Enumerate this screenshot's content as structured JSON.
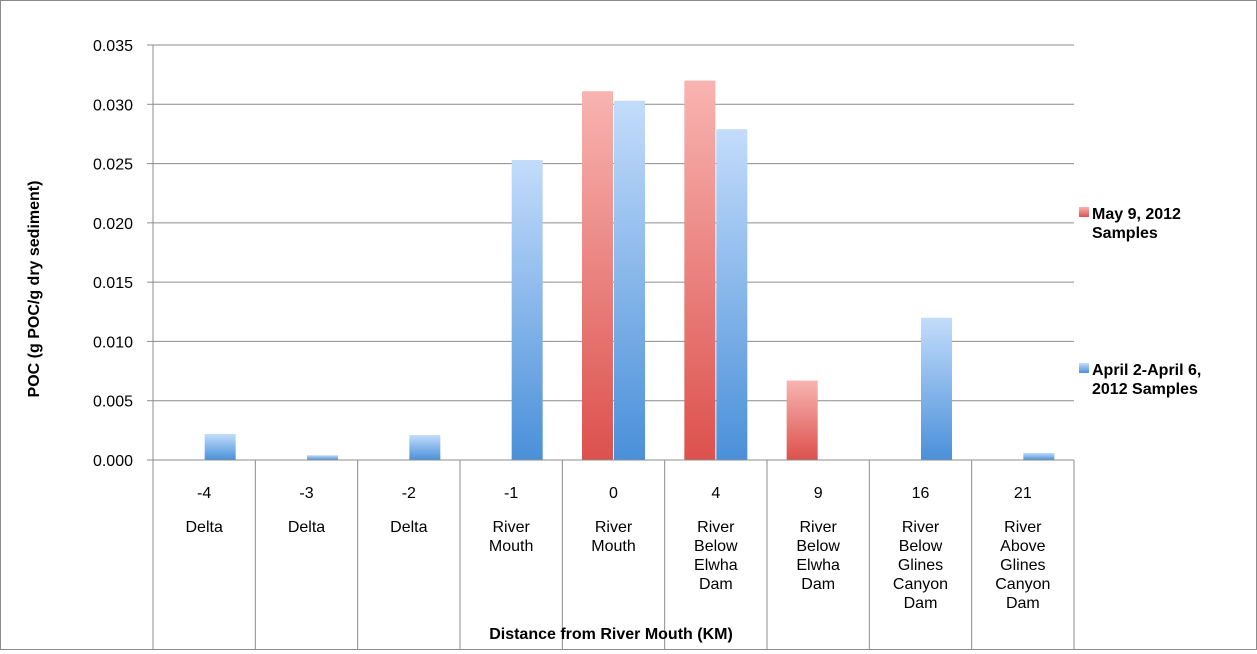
{
  "chart_data": {
    "type": "bar",
    "title": "",
    "xlabel": "Distance from River Mouth (KM)",
    "ylabel": "POC (g POC/g dry sediment)",
    "ylim": [
      0,
      0.035
    ],
    "yticks": [
      "0.000",
      "0.005",
      "0.010",
      "0.015",
      "0.020",
      "0.025",
      "0.030",
      "0.035"
    ],
    "grid": true,
    "legend_position": "right",
    "categories": [
      {
        "km": "-4",
        "site": [
          "Delta"
        ]
      },
      {
        "km": "-3",
        "site": [
          "Delta"
        ]
      },
      {
        "km": "-2",
        "site": [
          "Delta"
        ]
      },
      {
        "km": "-1",
        "site": [
          "River",
          "Mouth"
        ]
      },
      {
        "km": "0",
        "site": [
          "River",
          "Mouth"
        ]
      },
      {
        "km": "4",
        "site": [
          "River",
          "Below",
          "Elwha",
          "Dam"
        ]
      },
      {
        "km": "9",
        "site": [
          "River",
          "Below",
          "Elwha",
          "Dam"
        ]
      },
      {
        "km": "16",
        "site": [
          "River",
          "Below",
          "Glines",
          "Canyon",
          "Dam"
        ]
      },
      {
        "km": "21",
        "site": [
          "River",
          "Above",
          "Glines",
          "Canyon",
          "Dam"
        ]
      }
    ],
    "series": [
      {
        "name_lines": [
          "May 9, 2012",
          "Samples"
        ],
        "color_top": "#f8b4b1",
        "color_bottom": "#dc514d",
        "values": [
          0,
          0,
          0,
          0,
          0.0311,
          0.032,
          0.0067,
          0,
          0
        ]
      },
      {
        "name_lines": [
          "April 2-April 6,",
          "2012 Samples"
        ],
        "color_top": "#c3dcfb",
        "color_bottom": "#4a90d9",
        "values": [
          0.0022,
          0.0004,
          0.0021,
          0.0253,
          0.0303,
          0.0279,
          0,
          0.012,
          0.0006
        ]
      }
    ]
  }
}
